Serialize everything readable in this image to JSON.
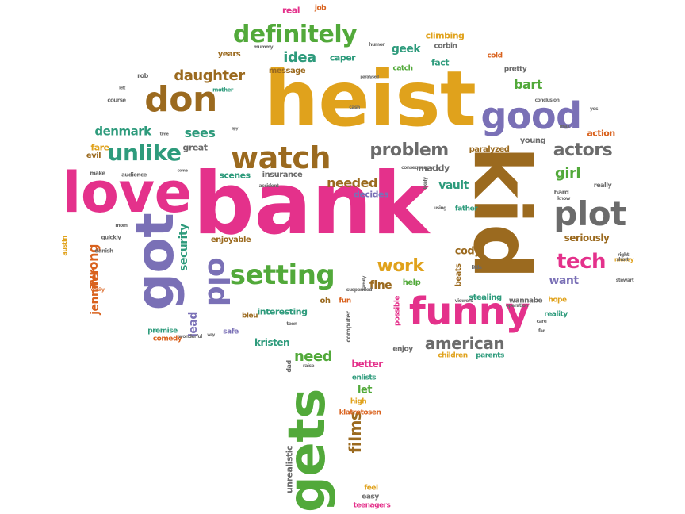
{
  "palette": {
    "green": "#52a93a",
    "pink": "#e4318b",
    "gold": "#e0a21c",
    "brown": "#9b6a1f",
    "purple": "#7a70b6",
    "gray": "#6b6b6b",
    "orange": "#d9621e",
    "teal": "#2e9b7c"
  },
  "words": [
    {
      "text": "heist",
      "color": "gold",
      "rotate": 0
    },
    {
      "text": "bank",
      "color": "pink",
      "rotate": 0
    },
    {
      "text": "kid",
      "color": "brown",
      "rotate": 90
    },
    {
      "text": "love",
      "color": "pink",
      "rotate": 0
    },
    {
      "text": "got",
      "color": "purple",
      "rotate": -90
    },
    {
      "text": "gets",
      "color": "green",
      "rotate": -90
    },
    {
      "text": "funny",
      "color": "pink",
      "rotate": 0
    },
    {
      "text": "good",
      "color": "purple",
      "rotate": 0
    },
    {
      "text": "don",
      "color": "brown",
      "rotate": 0
    },
    {
      "text": "watch",
      "color": "brown",
      "rotate": 0
    },
    {
      "text": "plot",
      "color": "gray",
      "rotate": 0
    },
    {
      "text": "old",
      "color": "purple",
      "rotate": 90
    },
    {
      "text": "setting",
      "color": "green",
      "rotate": 0
    },
    {
      "text": "definitely",
      "color": "green",
      "rotate": 0
    },
    {
      "text": "unlike",
      "color": "teal",
      "rotate": 0
    },
    {
      "text": "tech",
      "color": "pink",
      "rotate": 0
    },
    {
      "text": "actors",
      "color": "gray",
      "rotate": 0
    },
    {
      "text": "problem",
      "color": "gray",
      "rotate": 0
    },
    {
      "text": "work",
      "color": "gold",
      "rotate": 0
    },
    {
      "text": "american",
      "color": "gray",
      "rotate": 0
    },
    {
      "text": "daughter",
      "color": "brown",
      "rotate": 0
    },
    {
      "text": "idea",
      "color": "teal",
      "rotate": 0
    },
    {
      "text": "need",
      "color": "green",
      "rotate": 0
    },
    {
      "text": "films",
      "color": "brown",
      "rotate": -90
    },
    {
      "text": "girl",
      "color": "green",
      "rotate": 0
    },
    {
      "text": "bart",
      "color": "green",
      "rotate": 0
    },
    {
      "text": "denmark",
      "color": "teal",
      "rotate": 0
    },
    {
      "text": "sees",
      "color": "teal",
      "rotate": 0
    },
    {
      "text": "needed",
      "color": "brown",
      "rotate": 0
    },
    {
      "text": "vault",
      "color": "teal",
      "rotate": 0
    },
    {
      "text": "geek",
      "color": "teal",
      "rotate": 0
    },
    {
      "text": "fine",
      "color": "brown",
      "rotate": 0
    },
    {
      "text": "want",
      "color": "purple",
      "rotate": 0
    },
    {
      "text": "cody",
      "color": "brown",
      "rotate": 0
    },
    {
      "text": "wrong",
      "color": "orange",
      "rotate": -90
    },
    {
      "text": "security",
      "color": "teal",
      "rotate": -90
    },
    {
      "text": "jennifer",
      "color": "orange",
      "rotate": -90
    },
    {
      "text": "lead",
      "color": "purple",
      "rotate": -90
    },
    {
      "text": "seriously",
      "color": "brown",
      "rotate": 0
    },
    {
      "text": "kristen",
      "color": "teal",
      "rotate": 0
    },
    {
      "text": "better",
      "color": "pink",
      "rotate": 0
    },
    {
      "text": "let",
      "color": "green",
      "rotate": 0
    },
    {
      "text": "interesting",
      "color": "teal",
      "rotate": 0
    },
    {
      "text": "decides",
      "color": "purple",
      "rotate": 0
    },
    {
      "text": "maddy",
      "color": "gray",
      "rotate": 0
    },
    {
      "text": "years",
      "color": "brown",
      "rotate": 0
    },
    {
      "text": "message",
      "color": "brown",
      "rotate": 0
    },
    {
      "text": "caper",
      "color": "teal",
      "rotate": 0
    },
    {
      "text": "climbing",
      "color": "gold",
      "rotate": 0
    },
    {
      "text": "fact",
      "color": "teal",
      "rotate": 0
    },
    {
      "text": "real",
      "color": "pink",
      "rotate": 0
    },
    {
      "text": "job",
      "color": "orange",
      "rotate": 0
    },
    {
      "text": "corbin",
      "color": "gray",
      "rotate": 0
    },
    {
      "text": "cold",
      "color": "orange",
      "rotate": 0
    },
    {
      "text": "pretty",
      "color": "gray",
      "rotate": 0
    },
    {
      "text": "catch",
      "color": "green",
      "rotate": 0
    },
    {
      "text": "action",
      "color": "orange",
      "rotate": 0
    },
    {
      "text": "young",
      "color": "gray",
      "rotate": 0
    },
    {
      "text": "paralyzed",
      "color": "brown",
      "rotate": 0
    },
    {
      "text": "fare",
      "color": "gold",
      "rotate": 0
    },
    {
      "text": "evil",
      "color": "brown",
      "rotate": 0
    },
    {
      "text": "great",
      "color": "gray",
      "rotate": 0
    },
    {
      "text": "scenes",
      "color": "teal",
      "rotate": 0
    },
    {
      "text": "insurance",
      "color": "gray",
      "rotate": 0
    },
    {
      "text": "enjoyable",
      "color": "brown",
      "rotate": 0
    },
    {
      "text": "oh",
      "color": "brown",
      "rotate": 0
    },
    {
      "text": "fun",
      "color": "orange",
      "rotate": 0
    },
    {
      "text": "help",
      "color": "green",
      "rotate": 0
    },
    {
      "text": "beats",
      "color": "brown",
      "rotate": -90
    },
    {
      "text": "stealing",
      "color": "teal",
      "rotate": 0
    },
    {
      "text": "wannabe",
      "color": "gray",
      "rotate": 0
    },
    {
      "text": "hope",
      "color": "gold",
      "rotate": 0
    },
    {
      "text": "reality",
      "color": "teal",
      "rotate": 0
    },
    {
      "text": "premise",
      "color": "teal",
      "rotate": 0
    },
    {
      "text": "comedy",
      "color": "orange",
      "rotate": 0
    },
    {
      "text": "safe",
      "color": "purple",
      "rotate": 0
    },
    {
      "text": "bleu",
      "color": "brown",
      "rotate": 0
    },
    {
      "text": "enjoy",
      "color": "gray",
      "rotate": 0
    },
    {
      "text": "children",
      "color": "gold",
      "rotate": 0
    },
    {
      "text": "parents",
      "color": "teal",
      "rotate": 0
    },
    {
      "text": "enlists",
      "color": "teal",
      "rotate": 0
    },
    {
      "text": "high",
      "color": "gold",
      "rotate": 0
    },
    {
      "text": "klatretosen",
      "color": "orange",
      "rotate": 0
    },
    {
      "text": "unrealistic",
      "color": "gray",
      "rotate": -90
    },
    {
      "text": "feel",
      "color": "gold",
      "rotate": 0
    },
    {
      "text": "easy",
      "color": "gray",
      "rotate": 0
    },
    {
      "text": "teenagers",
      "color": "pink",
      "rotate": 0
    },
    {
      "text": "hard",
      "color": "gray",
      "rotate": 0
    },
    {
      "text": "really",
      "color": "gray",
      "rotate": 0
    },
    {
      "text": "father",
      "color": "teal",
      "rotate": 0
    },
    {
      "text": "money",
      "color": "gold",
      "rotate": 0
    },
    {
      "text": "rob",
      "color": "gray",
      "rotate": 0
    },
    {
      "text": "mother",
      "color": "teal",
      "rotate": 0
    },
    {
      "text": "course",
      "color": "gray",
      "rotate": 0
    },
    {
      "text": "audience",
      "color": "gray",
      "rotate": 0
    },
    {
      "text": "make",
      "color": "gray",
      "rotate": 0
    },
    {
      "text": "austin",
      "color": "gold",
      "rotate": -90
    },
    {
      "text": "quickly",
      "color": "gray",
      "rotate": 0
    },
    {
      "text": "danish",
      "color": "gray",
      "rotate": 0
    },
    {
      "text": "easily",
      "color": "orange",
      "rotate": 0
    },
    {
      "text": "mummy",
      "color": "gray",
      "rotate": 0
    },
    {
      "text": "humor",
      "color": "gray",
      "rotate": 0
    },
    {
      "text": "cash",
      "color": "gray",
      "rotate": 0
    },
    {
      "text": "conclusion",
      "color": "gray",
      "rotate": 0
    },
    {
      "text": "yes",
      "color": "gray",
      "rotate": 0
    },
    {
      "text": "max",
      "color": "gray",
      "rotate": 0
    },
    {
      "text": "know",
      "color": "gray",
      "rotate": 0
    },
    {
      "text": "stewart",
      "color": "gray",
      "rotate": 0
    },
    {
      "text": "right",
      "color": "gray",
      "rotate": 0
    },
    {
      "text": "short",
      "color": "gray",
      "rotate": 0
    },
    {
      "text": "far",
      "color": "gray",
      "rotate": 0
    },
    {
      "text": "care",
      "color": "gray",
      "rotate": 0
    },
    {
      "text": "little",
      "color": "gray",
      "rotate": 0
    },
    {
      "text": "possible",
      "color": "pink",
      "rotate": -90
    },
    {
      "text": "computer",
      "color": "gray",
      "rotate": -90
    },
    {
      "text": "dad",
      "color": "gray",
      "rotate": -90
    },
    {
      "text": "raise",
      "color": "gray",
      "rotate": 0
    },
    {
      "text": "teen",
      "color": "gray",
      "rotate": 0
    },
    {
      "text": "way",
      "color": "gray",
      "rotate": 0
    },
    {
      "text": "wonderful",
      "color": "gray",
      "rotate": 0
    },
    {
      "text": "accident",
      "color": "gray",
      "rotate": 0
    },
    {
      "text": "consequences",
      "color": "gray",
      "rotate": 0
    },
    {
      "text": "mom",
      "color": "gray",
      "rotate": 0
    },
    {
      "text": "using",
      "color": "gray",
      "rotate": 0
    },
    {
      "text": "viewers",
      "color": "gray",
      "rotate": 0
    },
    {
      "text": "operation",
      "color": "gray",
      "rotate": 0
    },
    {
      "text": "suspended",
      "color": "gray",
      "rotate": 0
    },
    {
      "text": "time",
      "color": "gray",
      "rotate": 0
    },
    {
      "text": "spy",
      "color": "gray",
      "rotate": 0
    },
    {
      "text": "come",
      "color": "gray",
      "rotate": 0
    },
    {
      "text": "left",
      "color": "gray",
      "rotate": 0
    },
    {
      "text": "paralysed",
      "color": "gray",
      "rotate": 0
    },
    {
      "text": "likely",
      "color": "gray",
      "rotate": -90
    },
    {
      "text": "family",
      "color": "gray",
      "rotate": -90
    }
  ]
}
